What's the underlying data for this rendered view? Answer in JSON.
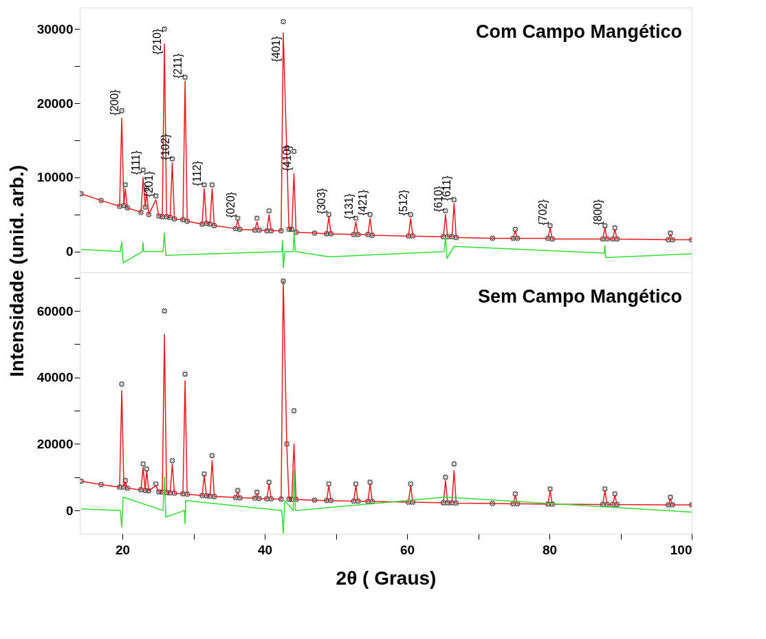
{
  "chart_data": [
    {
      "type": "scatter",
      "title": "Com Campo Mangético",
      "ylabel": "Intensidade (unid. arb.)",
      "xlim": [
        14,
        100
      ],
      "ylim": [
        -2800,
        32900
      ],
      "yticks": [
        0,
        {
          "value": 5000,
          "label": null
        },
        10000,
        {
          "value": 15000,
          "label": null
        },
        20000,
        {
          "value": 25000,
          "label": null
        },
        30000
      ],
      "tick_labels": "y",
      "grid": false,
      "x": [
        14.2,
        17,
        19.6,
        19.9,
        20.2,
        20.4,
        20.7,
        22.6,
        22.9,
        23.2,
        23.4,
        23.7,
        24.7,
        25.1,
        25.6,
        25.9,
        26.2,
        26.7,
        27.0,
        27.3,
        28.5,
        28.8,
        29.1,
        31.2,
        31.5,
        31.8,
        32.3,
        32.6,
        32.9,
        35.9,
        36.2,
        36.5,
        38.6,
        38.9,
        39.2,
        40.3,
        40.6,
        40.9,
        42.3,
        42.6,
        43.1,
        43.4,
        43.8,
        44.1,
        44.4,
        47,
        48.7,
        49.0,
        49.3,
        52.5,
        52.8,
        53.1,
        54.5,
        54.8,
        55.1,
        60.2,
        60.5,
        60.8,
        65.1,
        65.4,
        65.7,
        66.3,
        66.6,
        66.9,
        72,
        74.9,
        75.2,
        75.5,
        79.8,
        80.1,
        80.4,
        87.5,
        87.8,
        88.1,
        88.9,
        89.2,
        89.5,
        96.7,
        97.0,
        97.3,
        100
      ],
      "series": [
        {
          "marker": "cross",
          "color": "#222222",
          "values": [
            7800,
            6900,
            6100,
            19000,
            6200,
            9000,
            5900,
            5300,
            11000,
            6000,
            8500,
            5000,
            7500,
            4800,
            4700,
            30000,
            4700,
            4600,
            12500,
            4400,
            4300,
            23500,
            4100,
            3700,
            9000,
            3800,
            3700,
            9000,
            3500,
            3100,
            4500,
            3000,
            2900,
            4500,
            2900,
            2800,
            5500,
            2800,
            2800,
            31000,
            14000,
            3000,
            3000,
            13500,
            2600,
            2500,
            2400,
            5000,
            2400,
            2300,
            4500,
            2300,
            2300,
            5000,
            2200,
            2100,
            5000,
            2100,
            2000,
            5500,
            2000,
            2000,
            7000,
            1900,
            1800,
            1800,
            3000,
            1800,
            1800,
            3500,
            1700,
            1700,
            3500,
            1700,
            1700,
            3200,
            1700,
            1600,
            2500,
            1600,
            1600
          ]
        },
        {
          "type": "line",
          "marker": "none",
          "line_style": "solid",
          "color": "#e8191e",
          "values": [
            7800,
            6900,
            6100,
            18000,
            6200,
            8500,
            5900,
            5300,
            10000,
            6000,
            8000,
            5000,
            7000,
            4800,
            4700,
            28000,
            4700,
            4600,
            12000,
            4400,
            4300,
            23000,
            4100,
            3700,
            8500,
            3800,
            3700,
            8500,
            3500,
            3100,
            4200,
            3000,
            2900,
            4000,
            2900,
            2800,
            5000,
            2800,
            2800,
            29500,
            13000,
            3000,
            3000,
            10500,
            2600,
            2500,
            2400,
            4700,
            2400,
            2300,
            4000,
            2300,
            2300,
            4500,
            2200,
            2100,
            4500,
            2100,
            2000,
            5000,
            2000,
            2000,
            6500,
            1900,
            1800,
            1800,
            2800,
            1800,
            1800,
            3200,
            1700,
            1700,
            3200,
            1700,
            1700,
            3000,
            1700,
            1600,
            2300,
            1600,
            1600
          ]
        },
        {
          "type": "line",
          "marker": "none",
          "line_style": "solid",
          "color": "#33dd33",
          "x": [
            14.2,
            19.7,
            19.9,
            20.1,
            22.8,
            22.9,
            23.0,
            25.7,
            25.9,
            26.1,
            42.4,
            42.5,
            42.6,
            42.8,
            44.0,
            44.1,
            44.3,
            49.0,
            65.2,
            65.4,
            65.6,
            66.6,
            87.7,
            87.8,
            87.9,
            100
          ],
          "values": [
            300,
            0,
            1300,
            -1500,
            0,
            1200,
            0,
            0,
            2500,
            -500,
            0,
            1500,
            -2200,
            0,
            0,
            2500,
            0,
            -700,
            0,
            2000,
            -900,
            700,
            -200,
            800,
            -800,
            -300
          ]
        }
      ],
      "annotations": [
        {
          "text": "{200}",
          "x": 19.9,
          "y": 18000
        },
        {
          "text": "{111}",
          "x": 22.9,
          "y": 10000
        },
        {
          "text": "{201}",
          "x": 24.7,
          "y": 7000
        },
        {
          "text": "{210}",
          "x": 25.9,
          "y": 26200
        },
        {
          "text": "{102}",
          "x": 27.0,
          "y": 12000
        },
        {
          "text": "{211}",
          "x": 28.8,
          "y": 23000
        },
        {
          "text": "{112}",
          "x": 31.5,
          "y": 8500
        },
        {
          "text": "{020}",
          "x": 36.2,
          "y": 4200
        },
        {
          "text": "{401}",
          "x": 42.6,
          "y": 25200
        },
        {
          "text": "{410}",
          "x": 44.1,
          "y": 10500
        },
        {
          "text": "{303}",
          "x": 49.0,
          "y": 4700
        },
        {
          "text": "{131}",
          "x": 52.8,
          "y": 4000
        },
        {
          "text": "{421}",
          "x": 54.8,
          "y": 4500
        },
        {
          "text": "{512}",
          "x": 60.5,
          "y": 4500
        },
        {
          "text": "{610}",
          "x": 65.4,
          "y": 5000
        },
        {
          "text": "{611}",
          "x": 66.6,
          "y": 6500
        },
        {
          "text": "{702}",
          "x": 80.1,
          "y": 3200
        },
        {
          "text": "{800}",
          "x": 87.8,
          "y": 3200
        }
      ]
    },
    {
      "type": "scatter",
      "title": "Sem Campo Mangético",
      "xlabel": "2θ ( Graus)",
      "xlim": [
        14,
        100
      ],
      "ylim": [
        -7000,
        71600
      ],
      "xticks": [
        20,
        {
          "value": 30,
          "label": null
        },
        40,
        {
          "value": 50,
          "label": null
        },
        60,
        {
          "value": 70,
          "label": null
        },
        80,
        {
          "value": 90,
          "label": null
        },
        100
      ],
      "yticks": [
        0,
        {
          "value": 10000,
          "label": null
        },
        20000,
        {
          "value": 30000,
          "label": null
        },
        40000,
        {
          "value": 50000,
          "label": null
        },
        60000,
        {
          "value": 70000,
          "label": null
        }
      ],
      "grid": false,
      "x": [
        14.2,
        17,
        19.6,
        19.9,
        20.2,
        20.4,
        20.7,
        22.6,
        22.9,
        23.2,
        23.4,
        23.7,
        24.7,
        25.1,
        25.6,
        25.9,
        26.2,
        26.7,
        27.0,
        27.3,
        28.5,
        28.8,
        29.1,
        31.2,
        31.5,
        31.8,
        32.3,
        32.6,
        32.9,
        35.9,
        36.2,
        36.5,
        38.6,
        38.9,
        39.2,
        40.3,
        40.6,
        40.9,
        42.3,
        42.6,
        43.1,
        43.4,
        43.8,
        44.1,
        44.4,
        47,
        48.7,
        49.0,
        49.3,
        52.5,
        52.8,
        53.1,
        54.5,
        54.8,
        55.1,
        60.2,
        60.5,
        60.8,
        65.1,
        65.4,
        65.7,
        66.3,
        66.6,
        66.9,
        72,
        74.9,
        75.2,
        75.5,
        79.8,
        80.1,
        80.4,
        87.5,
        87.8,
        88.1,
        88.9,
        89.2,
        89.5,
        96.7,
        97.0,
        97.3,
        100
      ],
      "series": [
        {
          "marker": "cross",
          "color": "#222222",
          "values": [
            8800,
            7800,
            7000,
            38000,
            7000,
            9000,
            6700,
            6200,
            14000,
            6000,
            12500,
            5900,
            8000,
            5600,
            5500,
            60000,
            5400,
            5300,
            15000,
            5200,
            5000,
            41000,
            4900,
            4500,
            11000,
            4400,
            4300,
            16500,
            4200,
            3900,
            6000,
            3800,
            3700,
            5500,
            3600,
            3500,
            8500,
            3500,
            3400,
            69000,
            20000,
            3400,
            3300,
            30000,
            3300,
            3100,
            3000,
            8000,
            3000,
            2800,
            8000,
            2800,
            2700,
            8500,
            2700,
            2500,
            8000,
            2500,
            2300,
            10000,
            2300,
            2300,
            14000,
            2200,
            2100,
            2000,
            5000,
            2000,
            1900,
            6500,
            1900,
            1800,
            6500,
            1800,
            1800,
            5000,
            1800,
            1700,
            4000,
            1700,
            1700
          ]
        },
        {
          "type": "line",
          "marker": "none",
          "line_style": "solid",
          "color": "#e8191e",
          "values": [
            8800,
            7800,
            7000,
            36000,
            7000,
            8500,
            6700,
            6200,
            13000,
            6000,
            12000,
            5900,
            7500,
            5600,
            5500,
            53000,
            5400,
            5300,
            14000,
            5200,
            5000,
            39000,
            4900,
            4500,
            10500,
            4400,
            4300,
            15000,
            4200,
            3900,
            5500,
            3800,
            3700,
            5000,
            3600,
            3500,
            8000,
            3500,
            3400,
            69000,
            19000,
            3400,
            3300,
            20000,
            3300,
            3100,
            3000,
            7500,
            3000,
            2800,
            7500,
            2800,
            2700,
            8000,
            2700,
            2500,
            7500,
            2500,
            2300,
            9000,
            2300,
            2300,
            12000,
            2200,
            2100,
            2000,
            4500,
            2000,
            1900,
            6000,
            1900,
            1800,
            6000,
            1800,
            1800,
            4500,
            1800,
            1700,
            3500,
            1700,
            1700
          ]
        },
        {
          "type": "line",
          "marker": "none",
          "line_style": "solid",
          "color": "#33dd33",
          "x": [
            14.2,
            19.7,
            19.9,
            20.1,
            25.7,
            25.9,
            26.1,
            28.7,
            28.8,
            28.9,
            42.4,
            42.6,
            42.8,
            44.0,
            44.1,
            44.3,
            65.4,
            100
          ],
          "values": [
            500,
            0,
            -5000,
            4000,
            0,
            10000,
            -2000,
            0,
            -4000,
            3000,
            0,
            -7000,
            3000,
            0,
            12000,
            0,
            4000,
            -500
          ]
        }
      ]
    }
  ]
}
